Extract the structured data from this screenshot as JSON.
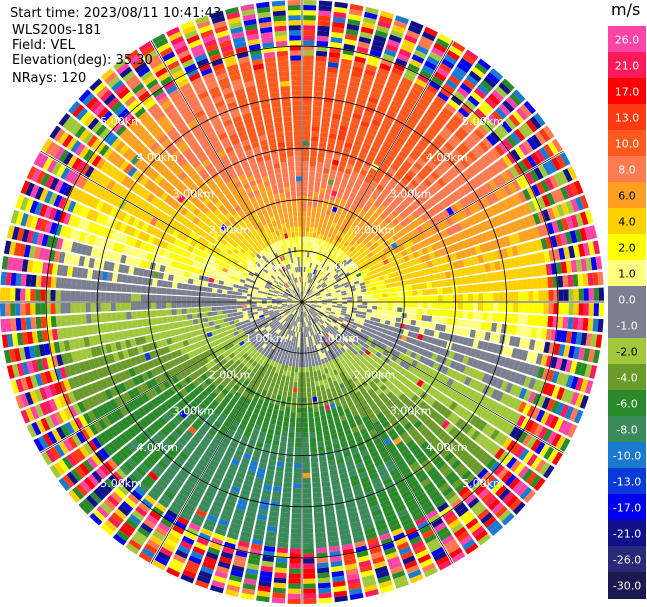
{
  "info": {
    "start_time": "Start time: 2023/08/11 10:41:43",
    "instrument": "WLS200s-181",
    "field": "Field: VEL",
    "elevation": "Elevation(deg): 35.30",
    "nrays": "NRays: 120"
  },
  "chart_data": {
    "type": "heatmap",
    "projection": "polar-ppi",
    "field": "VEL",
    "units": "m/s",
    "n_rays": 120,
    "range_rings_km": [
      1.0,
      2.0,
      3.0,
      4.0,
      5.0
    ],
    "range_ring_labels": [
      "1.00km",
      "2.00km",
      "3.00km",
      "4.00km",
      "5.00km"
    ],
    "max_range_km": 5.9,
    "radial_lines_deg": [
      0,
      30,
      60,
      90,
      120,
      150,
      180,
      210,
      240,
      270,
      300,
      330
    ],
    "colorbar": {
      "unit": "m/s",
      "ticks": [
        "26.0",
        "21.0",
        "17.0",
        "13.0",
        "10.0",
        "8.0",
        "6.0",
        "4.0",
        "2.0",
        "1.0",
        "0.0",
        "-1.0",
        "-2.0",
        "-4.0",
        "-6.0",
        "-8.0",
        "-10.0",
        "-13.0",
        "-17.0",
        "-21.0",
        "-26.0",
        "-30.0"
      ],
      "colors": [
        "#ff44a8",
        "#ff1a5a",
        "#ff0000",
        "#ff3a10",
        "#ff5a1e",
        "#ff7a50",
        "#ffa020",
        "#ffd000",
        "#ffff00",
        "#ffff80",
        "#7a8090",
        "#7a8090",
        "#a0c83a",
        "#6a9a2a",
        "#2a8a2a",
        "#3a8a5a",
        "#1a7ad0",
        "#0a3ad8",
        "#0000f0",
        "#10108a",
        "#2a2a78",
        "#1a1a50"
      ]
    },
    "velocity_pattern": {
      "description_values": {
        "max_receding_ms": 9.5,
        "max_approaching_ms": -9.0,
        "wind_from_deg": 10,
        "noise_onset_km": 4.8
      }
    }
  }
}
